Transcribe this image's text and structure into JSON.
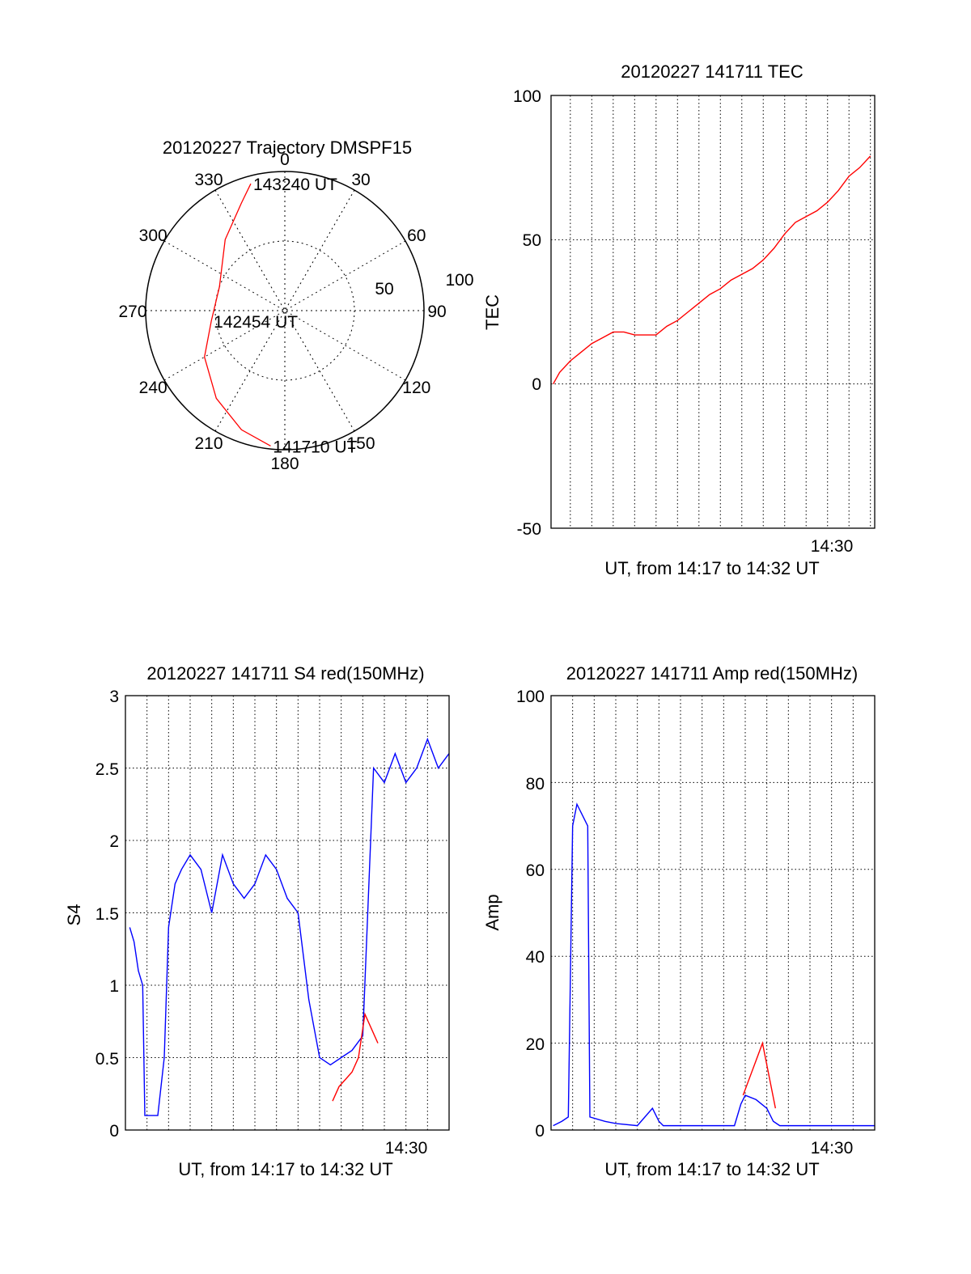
{
  "chart_data": [
    {
      "type": "polar",
      "title": "20120227 Trajectory DMSPF15",
      "angle_labels": [
        "0",
        "30",
        "60",
        "90",
        "120",
        "150",
        "180",
        "210",
        "240",
        "270",
        "300",
        "330"
      ],
      "radial_labels": [
        "50",
        "100"
      ],
      "colors": {
        "trajectory": "#ff0000"
      },
      "trajectory": {
        "points": [
          {
            "azimuth": 345,
            "elevation": 5
          },
          {
            "azimuth": 338,
            "elevation": 15
          },
          {
            "azimuth": 320,
            "elevation": 30
          },
          {
            "azimuth": 290,
            "elevation": 45
          },
          {
            "azimuth": 262,
            "elevation": 42
          },
          {
            "azimuth": 240,
            "elevation": 30
          },
          {
            "azimuth": 218,
            "elevation": 18
          },
          {
            "azimuth": 200,
            "elevation": 8
          },
          {
            "azimuth": 186,
            "elevation": 2
          }
        ],
        "annotations": [
          {
            "text": "143240 UT",
            "azimuth": 345,
            "elevation": 5
          },
          {
            "text": "142454 UT",
            "azimuth": 262,
            "elevation": 42
          },
          {
            "text": "141710 UT",
            "azimuth": 186,
            "elevation": 2
          }
        ]
      }
    },
    {
      "type": "line",
      "title": "20120227 141711 TEC",
      "xlabel": "UT, from 14:17 to 14:32 UT",
      "ylabel": "TEC",
      "ylim": [
        -50,
        100
      ],
      "yticks": [
        "100",
        "50",
        "0",
        "-50"
      ],
      "xtick_label": {
        "text": "14:30",
        "minute": 30
      },
      "xlim_minutes": [
        17.1,
        32.2
      ],
      "grid": true,
      "series": [
        {
          "color": "#ff0000",
          "x": [
            17.2,
            17.5,
            18.0,
            18.5,
            19.0,
            19.5,
            20.0,
            20.5,
            21.0,
            21.5,
            22.0,
            22.5,
            23.0,
            23.5,
            24.0,
            24.5,
            25.0,
            25.5,
            26.0,
            26.5,
            27.0,
            27.5,
            28.0,
            28.5,
            29.0,
            29.5,
            30.0,
            30.5,
            31.0,
            31.5,
            32.0
          ],
          "y": [
            0,
            4,
            8,
            11,
            14,
            16,
            18,
            18,
            17,
            17,
            17,
            20,
            22,
            25,
            28,
            31,
            33,
            36,
            38,
            40,
            43,
            47,
            52,
            56,
            58,
            60,
            63,
            67,
            72,
            75,
            79
          ]
        }
      ]
    },
    {
      "type": "line",
      "title": "20120227 141711 S4 red(150MHz)",
      "xlabel": "UT, from 14:17 to 14:32 UT",
      "ylabel": "S4",
      "ylim": [
        0,
        3
      ],
      "yticks": [
        "3",
        "2.5",
        "2",
        "1.5",
        "1",
        "0.5",
        "0"
      ],
      "xtick_label": {
        "text": "14:30",
        "minute": 30
      },
      "xlim_minutes": [
        17.0,
        32.0
      ],
      "grid": true,
      "series": [
        {
          "color": "#0000ff",
          "x": [
            17.2,
            17.4,
            17.6,
            17.8,
            17.9,
            18.5,
            18.8,
            19.0,
            19.3,
            19.6,
            20.0,
            20.5,
            21.0,
            21.5,
            22.0,
            22.5,
            23.0,
            23.5,
            24.0,
            24.5,
            25.0,
            25.5,
            26.0,
            26.5,
            27.0,
            27.5,
            28.0,
            28.5,
            29.0,
            29.5,
            30.0,
            30.5,
            31.0,
            31.5,
            32.0
          ],
          "y": [
            1.4,
            1.3,
            1.1,
            1.0,
            0.1,
            0.1,
            0.5,
            1.4,
            1.7,
            1.8,
            1.9,
            1.8,
            1.5,
            1.9,
            1.7,
            1.6,
            1.7,
            1.9,
            1.8,
            1.6,
            1.5,
            0.9,
            0.5,
            0.45,
            0.5,
            0.55,
            0.65,
            2.5,
            2.4,
            2.6,
            2.4,
            2.5,
            2.7,
            2.5,
            2.6
          ]
        },
        {
          "color": "#ff0000",
          "x": [
            26.6,
            26.9,
            27.2,
            27.5,
            27.8,
            28.1,
            28.4,
            28.7
          ],
          "y": [
            0.2,
            0.3,
            0.35,
            0.4,
            0.5,
            0.8,
            0.7,
            0.6
          ]
        }
      ]
    },
    {
      "type": "line",
      "title": "20120227 141711 Amp red(150MHz)",
      "xlabel": "UT, from 14:17 to 14:32 UT",
      "ylabel": "Amp",
      "ylim": [
        0,
        100
      ],
      "yticks": [
        "100",
        "80",
        "60",
        "40",
        "20",
        "0"
      ],
      "xtick_label": {
        "text": "14:30",
        "minute": 30
      },
      "xlim_minutes": [
        17.0,
        32.0
      ],
      "grid": true,
      "series": [
        {
          "color": "#0000ff",
          "x": [
            17.1,
            17.5,
            17.8,
            18.0,
            18.2,
            18.5,
            18.7,
            18.8,
            19.5,
            20.0,
            21.0,
            21.7,
            22.0,
            22.2,
            23.0,
            24.0,
            25.0,
            25.5,
            25.8,
            26.0,
            26.5,
            27.0,
            27.3,
            27.6,
            28.0,
            29.0,
            30.0,
            31.0,
            32.0
          ],
          "y": [
            1,
            2,
            3,
            70,
            75,
            72,
            70,
            3,
            2,
            1.5,
            1,
            5,
            2,
            1,
            1,
            1,
            1,
            1,
            6,
            8,
            7,
            5,
            2,
            1,
            1,
            1,
            1,
            1,
            1
          ]
        },
        {
          "color": "#ff0000",
          "x": [
            25.9,
            26.2,
            26.5,
            26.8,
            27.0,
            27.2,
            27.4
          ],
          "y": [
            8,
            12,
            16,
            20,
            15,
            10,
            5
          ]
        }
      ]
    }
  ]
}
